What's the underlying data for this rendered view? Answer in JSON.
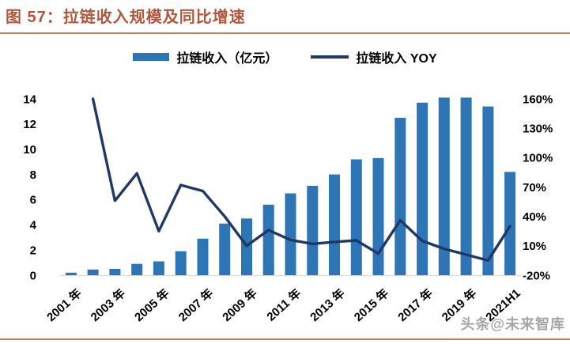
{
  "header": {
    "title": "图 57：拉链收入规模及同比增速"
  },
  "footer": {
    "watermark": "头条@未来智库"
  },
  "chart_data": {
    "type": "bar",
    "title": "图 57：拉链收入规模及同比增速",
    "categories": [
      "2001",
      "2002",
      "2003",
      "2004",
      "2005",
      "2006",
      "2007",
      "2008",
      "2009",
      "2010",
      "2011",
      "2012",
      "2013",
      "2014",
      "2015",
      "2016",
      "2017",
      "2018",
      "2019",
      "2020",
      "2021H1"
    ],
    "x_tick_labels": [
      "2001 年",
      "2003 年",
      "2005 年",
      "2007 年",
      "2009 年",
      "2011 年",
      "2013 年",
      "2015 年",
      "2017 年",
      "2019 年",
      "2021H1"
    ],
    "x_tick_every": 2,
    "series": [
      {
        "name": "拉链收入（亿元）",
        "type": "bar",
        "axis": "left",
        "values": [
          0.2,
          0.45,
          0.5,
          0.9,
          1.1,
          1.9,
          2.9,
          4.1,
          4.5,
          5.6,
          6.5,
          7.1,
          8.0,
          9.2,
          9.3,
          12.5,
          13.7,
          14.1,
          14.1,
          13.4,
          8.2
        ]
      },
      {
        "name": "拉链收入 YOY",
        "type": "line",
        "axis": "right",
        "values": [
          null,
          160,
          56,
          84,
          25,
          72,
          66,
          40,
          10,
          26,
          16,
          12,
          14,
          15.5,
          2,
          36,
          15,
          7,
          1,
          -5,
          30
        ]
      }
    ],
    "left_axis": {
      "min": 0,
      "max": 14,
      "ticks": [
        0,
        2,
        4,
        6,
        8,
        10,
        12,
        14
      ]
    },
    "right_axis": {
      "min": -20,
      "max": 160,
      "ticks": [
        "-20%",
        "10%",
        "40%",
        "70%",
        "100%",
        "130%",
        "160%"
      ]
    },
    "legend_position": "top",
    "grid": false,
    "colors": {
      "bar": "#2e75b6",
      "line": "#1f3864",
      "axis_line": "#d9d9d9",
      "title": "#b0573e",
      "rule": "#c57c61",
      "watermark": "#a6a6a6"
    }
  }
}
